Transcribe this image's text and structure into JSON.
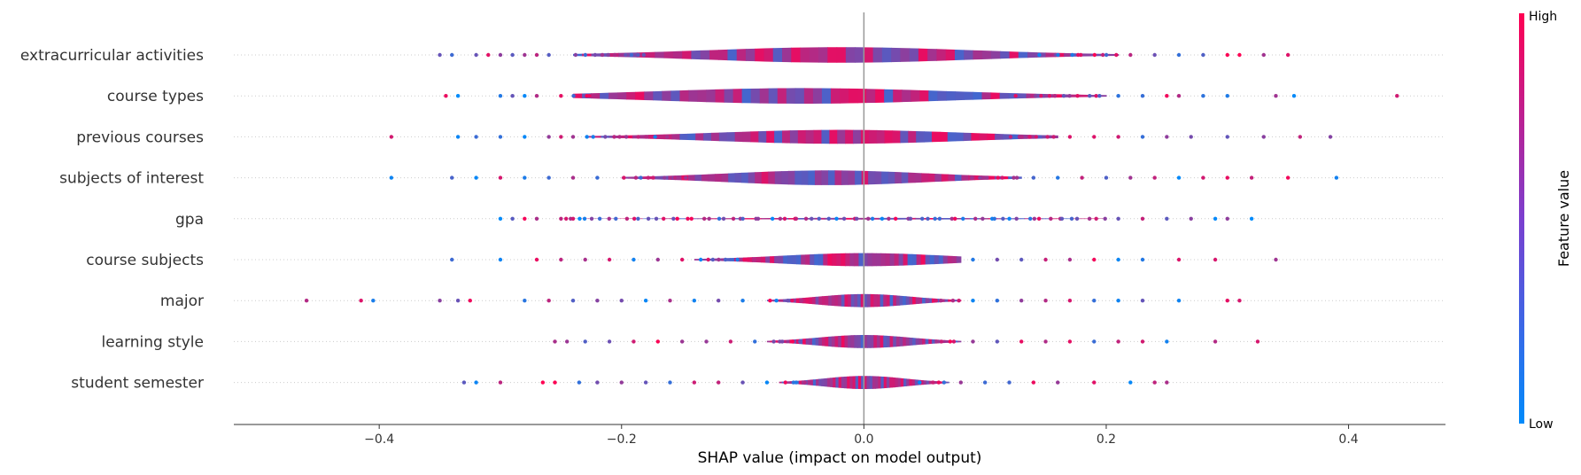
{
  "chart_data": {
    "type": "violin",
    "title": "",
    "xlabel": "SHAP value (impact on model output)",
    "xlim": [
      -0.52,
      0.48
    ],
    "xticks": [
      "−0.4",
      "−0.2",
      "0.0",
      "0.2",
      "0.4"
    ],
    "xtick_values": [
      -0.4,
      -0.2,
      0.0,
      0.2,
      0.4
    ],
    "colorbar": {
      "title": "Feature value",
      "high_label": "High",
      "low_label": "Low",
      "low_color": "#008bfb",
      "high_color": "#ff0052"
    },
    "zero_line": 0.0,
    "features": [
      {
        "name": "extracurricular activities",
        "core": [
          -0.24,
          0.21
        ],
        "width": 0.38,
        "peak": -0.02,
        "outliers": [
          -0.35,
          -0.34,
          -0.32,
          -0.31,
          -0.3,
          -0.29,
          -0.28,
          -0.27,
          -0.26,
          0.22,
          0.24,
          0.26,
          0.28,
          0.3,
          0.31,
          0.33,
          0.35
        ]
      },
      {
        "name": "course types",
        "core": [
          -0.24,
          0.2
        ],
        "width": 0.38,
        "peak": -0.05,
        "outliers": [
          -0.345,
          -0.335,
          -0.3,
          -0.29,
          -0.28,
          -0.27,
          -0.25,
          0.21,
          0.23,
          0.25,
          0.26,
          0.28,
          0.3,
          0.34,
          0.355,
          0.44
        ]
      },
      {
        "name": "previous courses",
        "core": [
          -0.23,
          0.16
        ],
        "width": 0.34,
        "peak": -0.02,
        "outliers": [
          -0.39,
          -0.335,
          -0.32,
          -0.3,
          -0.28,
          -0.26,
          -0.25,
          -0.24,
          0.17,
          0.19,
          0.21,
          0.23,
          0.25,
          0.27,
          0.3,
          0.33,
          0.36,
          0.385
        ]
      },
      {
        "name": "subjects of interest",
        "core": [
          -0.2,
          0.13
        ],
        "width": 0.36,
        "peak": -0.03,
        "outliers": [
          -0.39,
          -0.34,
          -0.32,
          -0.3,
          -0.28,
          -0.26,
          -0.24,
          -0.22,
          0.14,
          0.16,
          0.18,
          0.2,
          0.22,
          0.24,
          0.26,
          0.28,
          0.3,
          0.32,
          0.35,
          0.39
        ]
      },
      {
        "name": "gpa",
        "core": [
          -0.25,
          0.2
        ],
        "width": 0.04,
        "peak": 0.0,
        "outliers": [
          -0.3,
          -0.29,
          -0.28,
          -0.27,
          -0.25,
          -0.24,
          0.21,
          0.23,
          0.25,
          0.27,
          0.29,
          0.3,
          0.32
        ]
      },
      {
        "name": "course subjects",
        "core": [
          -0.14,
          0.08
        ],
        "width": 0.32,
        "peak": 0.0,
        "outliers": [
          -0.34,
          -0.3,
          -0.27,
          -0.25,
          -0.23,
          -0.21,
          -0.19,
          -0.17,
          -0.15,
          0.09,
          0.11,
          0.13,
          0.15,
          0.17,
          0.19,
          0.21,
          0.23,
          0.26,
          0.29,
          0.34
        ]
      },
      {
        "name": "major",
        "core": [
          -0.08,
          0.08
        ],
        "width": 0.32,
        "peak": 0.0,
        "outliers": [
          -0.46,
          -0.415,
          -0.405,
          -0.35,
          -0.335,
          -0.325,
          -0.28,
          -0.26,
          -0.24,
          -0.22,
          -0.2,
          -0.18,
          -0.16,
          -0.14,
          -0.12,
          -0.1,
          0.09,
          0.11,
          0.13,
          0.15,
          0.17,
          0.19,
          0.21,
          0.23,
          0.26,
          0.3,
          0.31
        ]
      },
      {
        "name": "learning style",
        "core": [
          -0.08,
          0.08
        ],
        "width": 0.32,
        "peak": 0.0,
        "outliers": [
          -0.255,
          -0.245,
          -0.23,
          -0.21,
          -0.19,
          -0.17,
          -0.15,
          -0.13,
          -0.11,
          -0.09,
          0.09,
          0.11,
          0.13,
          0.15,
          0.17,
          0.19,
          0.21,
          0.23,
          0.25,
          0.29,
          0.325
        ]
      },
      {
        "name": "student semester",
        "core": [
          -0.07,
          0.07
        ],
        "width": 0.32,
        "peak": 0.0,
        "outliers": [
          -0.33,
          -0.32,
          -0.3,
          -0.265,
          -0.255,
          -0.235,
          -0.22,
          -0.2,
          -0.18,
          -0.16,
          -0.14,
          -0.12,
          -0.1,
          -0.08,
          0.08,
          0.1,
          0.12,
          0.14,
          0.16,
          0.19,
          0.22,
          0.24,
          0.25
        ]
      }
    ]
  }
}
